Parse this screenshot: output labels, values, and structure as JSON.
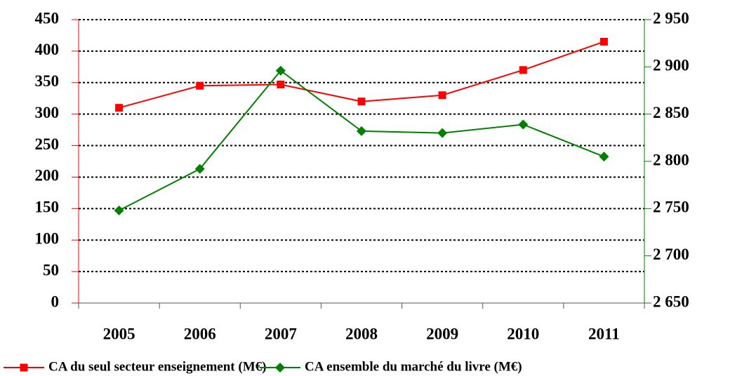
{
  "chart_data": {
    "type": "line",
    "categories": [
      "2005",
      "2006",
      "2007",
      "2008",
      "2009",
      "2010",
      "2011"
    ],
    "series": [
      {
        "name": "CA du seul secteur enseignement  (M€)",
        "color": "#ff0000",
        "marker": "square",
        "values": [
          310,
          345,
          347,
          320,
          330,
          370,
          415
        ]
      },
      {
        "name": "CA ensemble du marché du livre (M€)",
        "color": "#008000",
        "marker": "diamond",
        "axis": "y2",
        "values": [
          2748,
          2792,
          2896,
          2832,
          2830,
          2839,
          2805
        ]
      }
    ],
    "ylim": [
      0,
      450
    ],
    "yticks": [
      0,
      50,
      100,
      150,
      200,
      250,
      300,
      350,
      400,
      450
    ],
    "y2lim": [
      2650,
      2950
    ],
    "y2ticks": [
      {
        "value": 2650,
        "label": "2 650"
      },
      {
        "value": 2700,
        "label": "2 700"
      },
      {
        "value": 2750,
        "label": "2 750"
      },
      {
        "value": 2800,
        "label": "2 800"
      },
      {
        "value": 2850,
        "label": "2 850"
      },
      {
        "value": 2900,
        "label": "2 900"
      },
      {
        "value": 2950,
        "label": "2 950"
      }
    ],
    "grid": true,
    "legend": "bottom"
  }
}
